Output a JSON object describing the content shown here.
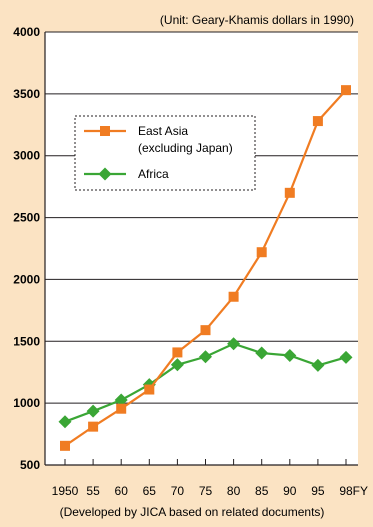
{
  "unit_note": "(Unit: Geary-Khamis dollars in 1990)",
  "source_note": "(Developed by JICA based on related documents)",
  "chart_data": {
    "type": "line",
    "title": "",
    "xlabel": "",
    "ylabel": "",
    "x_unit_label": "FY",
    "categories": [
      "1950",
      "55",
      "60",
      "65",
      "70",
      "75",
      "80",
      "85",
      "90",
      "95",
      "98"
    ],
    "ylim": [
      500,
      4000
    ],
    "yticks": [
      500,
      1000,
      1500,
      2000,
      2500,
      3000,
      3500,
      4000
    ],
    "grid": "horizontal",
    "legend_placement": "upper-left",
    "series": [
      {
        "name": "East Asia\n(excluding Japan)",
        "label_lines": [
          "East Asia",
          "(excluding Japan)"
        ],
        "marker": "square",
        "color": "#f07c22",
        "values": [
          655,
          810,
          955,
          1110,
          1410,
          1590,
          1860,
          2220,
          2700,
          3280,
          3530
        ]
      },
      {
        "name": "Africa",
        "label_lines": [
          "Africa"
        ],
        "marker": "diamond",
        "color": "#3aa635",
        "values": [
          850,
          935,
          1025,
          1150,
          1310,
          1375,
          1480,
          1405,
          1385,
          1305,
          1370
        ]
      }
    ],
    "colors": {
      "background": "#fbe3c3",
      "plot_area": "#ffffff",
      "axis": "#231f20"
    }
  }
}
